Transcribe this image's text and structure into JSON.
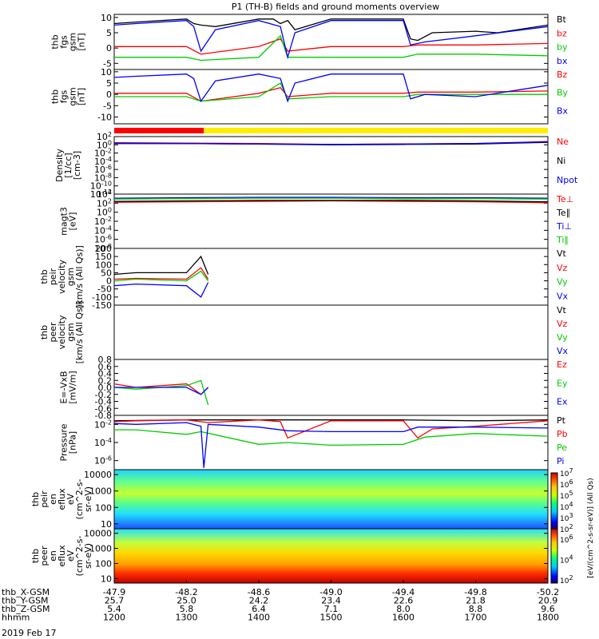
{
  "title": "P1 (TH-B) fields and ground moments overview",
  "panels": [
    {
      "id": "fgs_full",
      "ylabel": [
        "thb",
        "fgs",
        "gsm",
        "[nT]"
      ],
      "ticks": [
        "10",
        "5",
        "0",
        "-5"
      ],
      "ymin": -7,
      "ymax": 11,
      "legend": [
        {
          "text": "Bt",
          "color": "#000000"
        },
        {
          "text": "bz",
          "color": "#ff0000"
        },
        {
          "text": "by",
          "color": "#00cc00"
        },
        {
          "text": "bx",
          "color": "#0000ff"
        }
      ]
    },
    {
      "id": "fgs_comp",
      "ylabel": [
        "thb",
        "fgs",
        "gsm",
        "[nT]"
      ],
      "ticks": [
        "10",
        "5",
        "0",
        "-5",
        "-10"
      ],
      "ymin": -13,
      "ymax": 11,
      "legend": [
        {
          "text": "Bz",
          "color": "#ff0000"
        },
        {
          "text": "By",
          "color": "#00cc00"
        },
        {
          "text": "Bx",
          "color": "#0000ff"
        }
      ]
    },
    {
      "id": "density",
      "ylabel": [
        "Density",
        "[1/cc]",
        "[cm-3]"
      ],
      "ticks": [
        "10^2",
        "10^0",
        "10^-2",
        "10^-4",
        "10^-6",
        "10^-8",
        "10^-10",
        "10^-12"
      ],
      "ymin": -12,
      "ymax": 2,
      "legend": [
        {
          "text": "Ne",
          "color": "#ff0000"
        },
        {
          "text": "Ni",
          "color": "#000000"
        },
        {
          "text": "Npot",
          "color": "#0000ff"
        }
      ]
    },
    {
      "id": "temp",
      "ylabel": [
        "magt3",
        "[eV]"
      ],
      "ticks": [
        "10^4",
        "10^2",
        "10^0",
        "10^-2",
        "10^-4",
        "10^-6",
        "10^-8"
      ],
      "ymin": -8,
      "ymax": 4,
      "legend": [
        {
          "text": "Te⊥",
          "color": "#ff0000"
        },
        {
          "text": "Te∥",
          "color": "#000000"
        },
        {
          "text": "Ti⊥",
          "color": "#0000ff"
        },
        {
          "text": "Ti∥",
          "color": "#00cc00"
        }
      ]
    },
    {
      "id": "peir_vel",
      "ylabel": [
        "thb",
        "peir",
        "velocity",
        "gsm",
        "[km/s (All Qs)]"
      ],
      "ticks": [
        "200",
        "150",
        "100",
        "50",
        "0",
        "-50",
        "-100",
        "-150"
      ],
      "ymin": -150,
      "ymax": 200,
      "legend": [
        {
          "text": "Vt",
          "color": "#000000"
        },
        {
          "text": "Vz",
          "color": "#ff0000"
        },
        {
          "text": "Vy",
          "color": "#00cc00"
        },
        {
          "text": "Vx",
          "color": "#0000ff"
        }
      ]
    },
    {
      "id": "peer_vel",
      "ylabel": [
        "thb",
        "peer",
        "velocity",
        "gsm",
        "[km/s (All Qs)]"
      ],
      "ticks": [],
      "ymin": 0,
      "ymax": 1,
      "legend": [
        {
          "text": "Vt",
          "color": "#000000"
        },
        {
          "text": "Vz",
          "color": "#ff0000"
        },
        {
          "text": "Vy",
          "color": "#00cc00"
        },
        {
          "text": "Vx",
          "color": "#0000ff"
        }
      ]
    },
    {
      "id": "efield",
      "ylabel": [
        "E=-VxB",
        "[mV/m]"
      ],
      "ticks": [
        "0.8",
        "0.6",
        "0.4",
        "0.2",
        "0.0",
        "-0.2",
        "-0.4",
        "-0.6",
        "-0.8"
      ],
      "ymin": -0.8,
      "ymax": 0.8,
      "legend": [
        {
          "text": "Ez",
          "color": "#ff0000"
        },
        {
          "text": "Ey",
          "color": "#00cc00"
        },
        {
          "text": "Ex",
          "color": "#0000ff"
        }
      ]
    },
    {
      "id": "pressure",
      "ylabel": [
        "Pressure",
        "[nPa]"
      ],
      "ticks": [
        "10^-2",
        "10^-4",
        "10^-6"
      ],
      "ymin": -7,
      "ymax": -1,
      "legend": [
        {
          "text": "Pt",
          "color": "#000000"
        },
        {
          "text": "Pb",
          "color": "#ff0000"
        },
        {
          "text": "Pe",
          "color": "#00cc00"
        },
        {
          "text": "Pi",
          "color": "#0000ff"
        }
      ]
    },
    {
      "id": "peir_spec",
      "ylabel": [
        "thb",
        "peir",
        "en",
        "eflux",
        "eV",
        "(cm^2-s-",
        "sr-eV)"
      ],
      "ticks": [
        "10000",
        "1000",
        "100",
        "10"
      ],
      "ymin": 0.7,
      "ymax": 4.3,
      "legend": []
    },
    {
      "id": "peer_spec",
      "ylabel": [
        "thb",
        "peer",
        "en",
        "eflux",
        "eV",
        "(cm^2-s-",
        "sr-eV)"
      ],
      "ticks": [
        "10000",
        "1000",
        "100",
        "10"
      ],
      "ymin": 0.7,
      "ymax": 4.3,
      "legend": []
    }
  ],
  "colorbar1": {
    "ticks": [
      "10^7",
      "10^6",
      "10^5",
      "10^4",
      "10^3",
      "10^2"
    ],
    "min": 2,
    "max": 7
  },
  "colorbar2": {
    "ticks": [
      "10^6",
      "10^4",
      "10^2"
    ],
    "min": 1.7,
    "max": 7
  },
  "colorbar_label": "[eV/(cm^2-s-sr-eV)] (All Qs)",
  "status_bar": {
    "red_until": 1324,
    "stroke": "#ff0000",
    "rest": "#ffee00"
  },
  "xaxis": {
    "rows": [
      {
        "label": "thb_X-GSM",
        "values": [
          "-47.9",
          "-48.2",
          "-48.6",
          "-49.0",
          "-49.4",
          "-49.8",
          "-50.2"
        ]
      },
      {
        "label": "thb_Y-GSM",
        "values": [
          "25.7",
          "25.0",
          "24.2",
          "23.4",
          "22.6",
          "21.8",
          "20.9"
        ]
      },
      {
        "label": "thb_Z-GSM",
        "values": [
          "5.4",
          "5.8",
          "6.4",
          "7.1",
          "8.0",
          "8.8",
          "9.6"
        ]
      },
      {
        "label": "hhmm",
        "values": [
          "1200",
          "1300",
          "1400",
          "1500",
          "1600",
          "1700",
          "1800"
        ]
      }
    ],
    "date": "2019 Feb 17"
  },
  "chart_data": {
    "type": "line",
    "title": "P1 (TH-B) fields and ground moments overview",
    "x_range": [
      1200,
      1800
    ],
    "x_ticks": [
      "1200",
      "1300",
      "1400",
      "1500",
      "1600",
      "1700",
      "1800"
    ],
    "series": [
      {
        "panel": "fgs_full",
        "name": "Bt",
        "color": "#000000",
        "x": [
          1200,
          1230,
          1300,
          1310,
          1320,
          1340,
          1400,
          1420,
          1430,
          1440,
          1450,
          1500,
          1530,
          1600,
          1610,
          1620,
          1640,
          1700,
          1730,
          1800
        ],
        "y": [
          8,
          8.5,
          9.5,
          8,
          7.5,
          7,
          9.5,
          9.5,
          8,
          9,
          6,
          9.5,
          9.5,
          9.5,
          3,
          2.5,
          5,
          5.5,
          5,
          7.5
        ]
      },
      {
        "panel": "fgs_full",
        "name": "bz",
        "color": "#ff0000",
        "x": [
          1200,
          1300,
          1320,
          1400,
          1430,
          1440,
          1500,
          1600,
          1620,
          1700,
          1800
        ],
        "y": [
          0.5,
          0.5,
          -2,
          0.5,
          3,
          -1,
          0.5,
          0.5,
          1,
          1,
          1.5
        ]
      },
      {
        "panel": "fgs_full",
        "name": "by",
        "color": "#00cc00",
        "x": [
          1200,
          1300,
          1320,
          1400,
          1430,
          1440,
          1500,
          1600,
          1620,
          1700,
          1800
        ],
        "y": [
          -3,
          -3,
          -4,
          -3,
          4,
          -3,
          -3,
          -3,
          -2,
          -2,
          -2.5
        ]
      },
      {
        "panel": "fgs_full",
        "name": "bx",
        "color": "#0000ff",
        "x": [
          1200,
          1230,
          1300,
          1310,
          1320,
          1340,
          1400,
          1430,
          1440,
          1450,
          1500,
          1600,
          1610,
          1630,
          1700,
          1800
        ],
        "y": [
          7.5,
          8,
          9,
          7,
          -1,
          6,
          9,
          7,
          -3,
          5,
          9,
          9,
          1,
          2,
          4,
          7
        ]
      },
      {
        "panel": "fgs_comp",
        "name": "Bz",
        "color": "#ff0000",
        "x": [
          1200,
          1300,
          1320,
          1400,
          1430,
          1440,
          1500,
          1600,
          1620,
          1700,
          1800
        ],
        "y": [
          0.5,
          0.5,
          -3,
          0.5,
          3,
          -1,
          0.5,
          0.5,
          1,
          1,
          1.5
        ]
      },
      {
        "panel": "fgs_comp",
        "name": "By",
        "color": "#00cc00",
        "x": [
          1200,
          1300,
          1320,
          1400,
          1430,
          1440,
          1500,
          1600,
          1620,
          1700,
          1800
        ],
        "y": [
          -1,
          -1,
          -3,
          -1,
          5,
          -2,
          -1,
          -1,
          0,
          0,
          0
        ]
      },
      {
        "panel": "fgs_comp",
        "name": "Bx",
        "color": "#0000ff",
        "x": [
          1200,
          1230,
          1300,
          1310,
          1320,
          1340,
          1400,
          1430,
          1440,
          1450,
          1500,
          1600,
          1610,
          1630,
          1700,
          1800
        ],
        "y": [
          7.5,
          8,
          9,
          7,
          -3,
          6,
          9,
          7,
          -3,
          5,
          9,
          9,
          -2,
          0,
          -1,
          4
        ]
      },
      {
        "panel": "density",
        "name": "Ne",
        "color": "#ff0000",
        "x": [
          1200,
          1300,
          1400,
          1500,
          1600,
          1700,
          1800
        ],
        "y": [
          0.5,
          0.4,
          0.3,
          0.1,
          0.2,
          0.3,
          0.8
        ]
      },
      {
        "panel": "density",
        "name": "Ni",
        "color": "#000000",
        "x": [
          1200,
          1300,
          1400,
          1500,
          1600,
          1700,
          1800
        ],
        "y": [
          0.3,
          0.3,
          0.2,
          0,
          0.1,
          0.2,
          0.6
        ]
      },
      {
        "panel": "density",
        "name": "Npot",
        "color": "#0000ff",
        "x": [
          1200,
          1300,
          1400,
          1500,
          1600,
          1700,
          1800
        ],
        "y": [
          0.4,
          0.3,
          0.2,
          0.1,
          0.2,
          0.3,
          0.7
        ]
      },
      {
        "panel": "temp",
        "name": "Te⊥",
        "color": "#ff0000",
        "x": [
          1200,
          1300,
          1400,
          1500,
          1600,
          1700,
          1800
        ],
        "y": [
          2.2,
          2.3,
          2.4,
          2.5,
          2.4,
          2.3,
          2.1
        ]
      },
      {
        "panel": "temp",
        "name": "Te∥",
        "color": "#000000",
        "x": [
          1200,
          1300,
          1400,
          1500,
          1600,
          1700,
          1800
        ],
        "y": [
          2.4,
          2.5,
          2.6,
          2.6,
          2.6,
          2.5,
          2.3
        ]
      },
      {
        "panel": "temp",
        "name": "Ti⊥",
        "color": "#0000ff",
        "x": [
          1200,
          1300,
          1400,
          1500,
          1600,
          1700,
          1800
        ],
        "y": [
          3.1,
          3.2,
          3.3,
          3.3,
          3.2,
          3.2,
          3.1
        ]
      },
      {
        "panel": "temp",
        "name": "Ti∥",
        "color": "#00cc00",
        "x": [
          1200,
          1300,
          1400,
          1500,
          1600,
          1700,
          1800
        ],
        "y": [
          2.9,
          3,
          3.1,
          3.1,
          3,
          3,
          2.9
        ]
      },
      {
        "panel": "peir_vel",
        "name": "Vt",
        "color": "#000000",
        "x": [
          1200,
          1230,
          1300,
          1320,
          1330
        ],
        "y": [
          40,
          50,
          50,
          150,
          40
        ]
      },
      {
        "panel": "peir_vel",
        "name": "Vz",
        "color": "#ff0000",
        "x": [
          1200,
          1230,
          1300,
          1320,
          1330
        ],
        "y": [
          10,
          15,
          10,
          80,
          10
        ]
      },
      {
        "panel": "peir_vel",
        "name": "Vy",
        "color": "#00cc00",
        "x": [
          1200,
          1230,
          1300,
          1320,
          1330
        ],
        "y": [
          0,
          10,
          0,
          60,
          0
        ]
      },
      {
        "panel": "peir_vel",
        "name": "Vx",
        "color": "#0000ff",
        "x": [
          1200,
          1230,
          1300,
          1320,
          1330
        ],
        "y": [
          -30,
          -20,
          -30,
          -100,
          -10
        ]
      },
      {
        "panel": "efield",
        "name": "Ez",
        "color": "#ff0000",
        "x": [
          1200,
          1230,
          1300,
          1320,
          1330
        ],
        "y": [
          0.1,
          0,
          0.1,
          -0.2,
          0
        ]
      },
      {
        "panel": "efield",
        "name": "Ey",
        "color": "#00cc00",
        "x": [
          1200,
          1230,
          1300,
          1320,
          1330
        ],
        "y": [
          0,
          -0.05,
          0.05,
          0.2,
          -0.5
        ]
      },
      {
        "panel": "efield",
        "name": "Ex",
        "color": "#0000ff",
        "x": [
          1200,
          1230,
          1300,
          1320,
          1330
        ],
        "y": [
          0,
          0,
          0,
          -0.2,
          0
        ]
      },
      {
        "panel": "pressure",
        "name": "Pt",
        "color": "#000000",
        "x": [
          1200,
          1300,
          1400,
          1500,
          1600,
          1700,
          1800
        ],
        "y": [
          -1.6,
          -1.5,
          -1.5,
          -1.5,
          -1.5,
          -1.6,
          -1.5
        ]
      },
      {
        "panel": "pressure",
        "name": "Pb",
        "color": "#ff0000",
        "x": [
          1200,
          1230,
          1300,
          1330,
          1400,
          1430,
          1440,
          1500,
          1600,
          1620,
          1640,
          1700,
          1800
        ],
        "y": [
          -1.7,
          -1.6,
          -1.5,
          -1.8,
          -1.5,
          -1.7,
          -3.5,
          -1.6,
          -1.6,
          -3.5,
          -2.5,
          -2.2,
          -1.6
        ]
      },
      {
        "panel": "pressure",
        "name": "Pe",
        "color": "#00cc00",
        "x": [
          1200,
          1230,
          1300,
          1320,
          1400,
          1440,
          1500,
          1600,
          1630,
          1700,
          1800
        ],
        "y": [
          -2.6,
          -2.6,
          -3.1,
          -2.8,
          -4.2,
          -4,
          -4.3,
          -4.2,
          -3.4,
          -3,
          -3.3
        ]
      },
      {
        "panel": "pressure",
        "name": "Pi",
        "color": "#0000ff",
        "x": [
          1200,
          1230,
          1300,
          1320,
          1324,
          1330,
          1400,
          1440,
          1500,
          1600,
          1620,
          1700,
          1800
        ],
        "y": [
          -1.9,
          -2,
          -1.8,
          -2.2,
          -6.8,
          -2,
          -2.3,
          -2.7,
          -2.8,
          -2.8,
          -2.3,
          -2.3,
          -2.4
        ]
      }
    ]
  }
}
